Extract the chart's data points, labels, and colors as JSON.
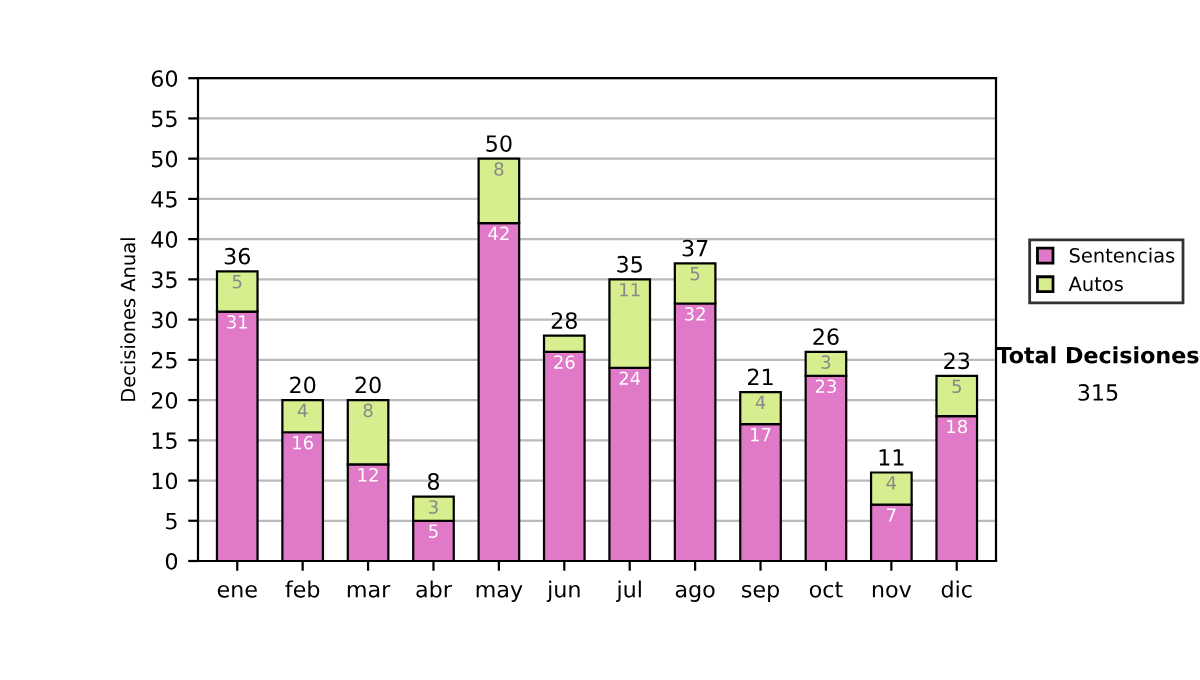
{
  "chart_data": {
    "type": "bar",
    "stacked": true,
    "ylabel": "Decisiones Anual",
    "categories": [
      "ene",
      "feb",
      "mar",
      "abr",
      "may",
      "jun",
      "jul",
      "ago",
      "sep",
      "oct",
      "nov",
      "dic"
    ],
    "series": [
      {
        "name": "Sentencias",
        "color": "#e07ac8",
        "values": [
          31,
          16,
          12,
          5,
          42,
          26,
          24,
          32,
          17,
          23,
          7,
          18
        ],
        "value_labels": [
          "31",
          "16",
          "12",
          "5",
          "42",
          "26",
          "24",
          "32",
          "17",
          "23",
          "7",
          "18"
        ]
      },
      {
        "name": "Autos",
        "color": "#d6ee8e",
        "values": [
          5,
          4,
          8,
          3,
          8,
          2,
          11,
          5,
          4,
          3,
          4,
          5
        ],
        "value_labels": [
          "5",
          "4",
          "8",
          "3",
          "8",
          null,
          "11",
          "5",
          "4",
          "3",
          "4",
          "5"
        ]
      }
    ],
    "totals": [
      "36",
      "20",
      "20",
      "8",
      "50",
      "28",
      "35",
      "37",
      "21",
      "26",
      "11",
      "23"
    ],
    "ylim": [
      0,
      60
    ],
    "yticks": [
      0,
      5,
      10,
      15,
      20,
      25,
      30,
      35,
      40,
      45,
      50,
      55,
      60
    ],
    "grid": "y",
    "legend": "right",
    "annotations": [
      "Total Decisiones",
      "315"
    ]
  }
}
